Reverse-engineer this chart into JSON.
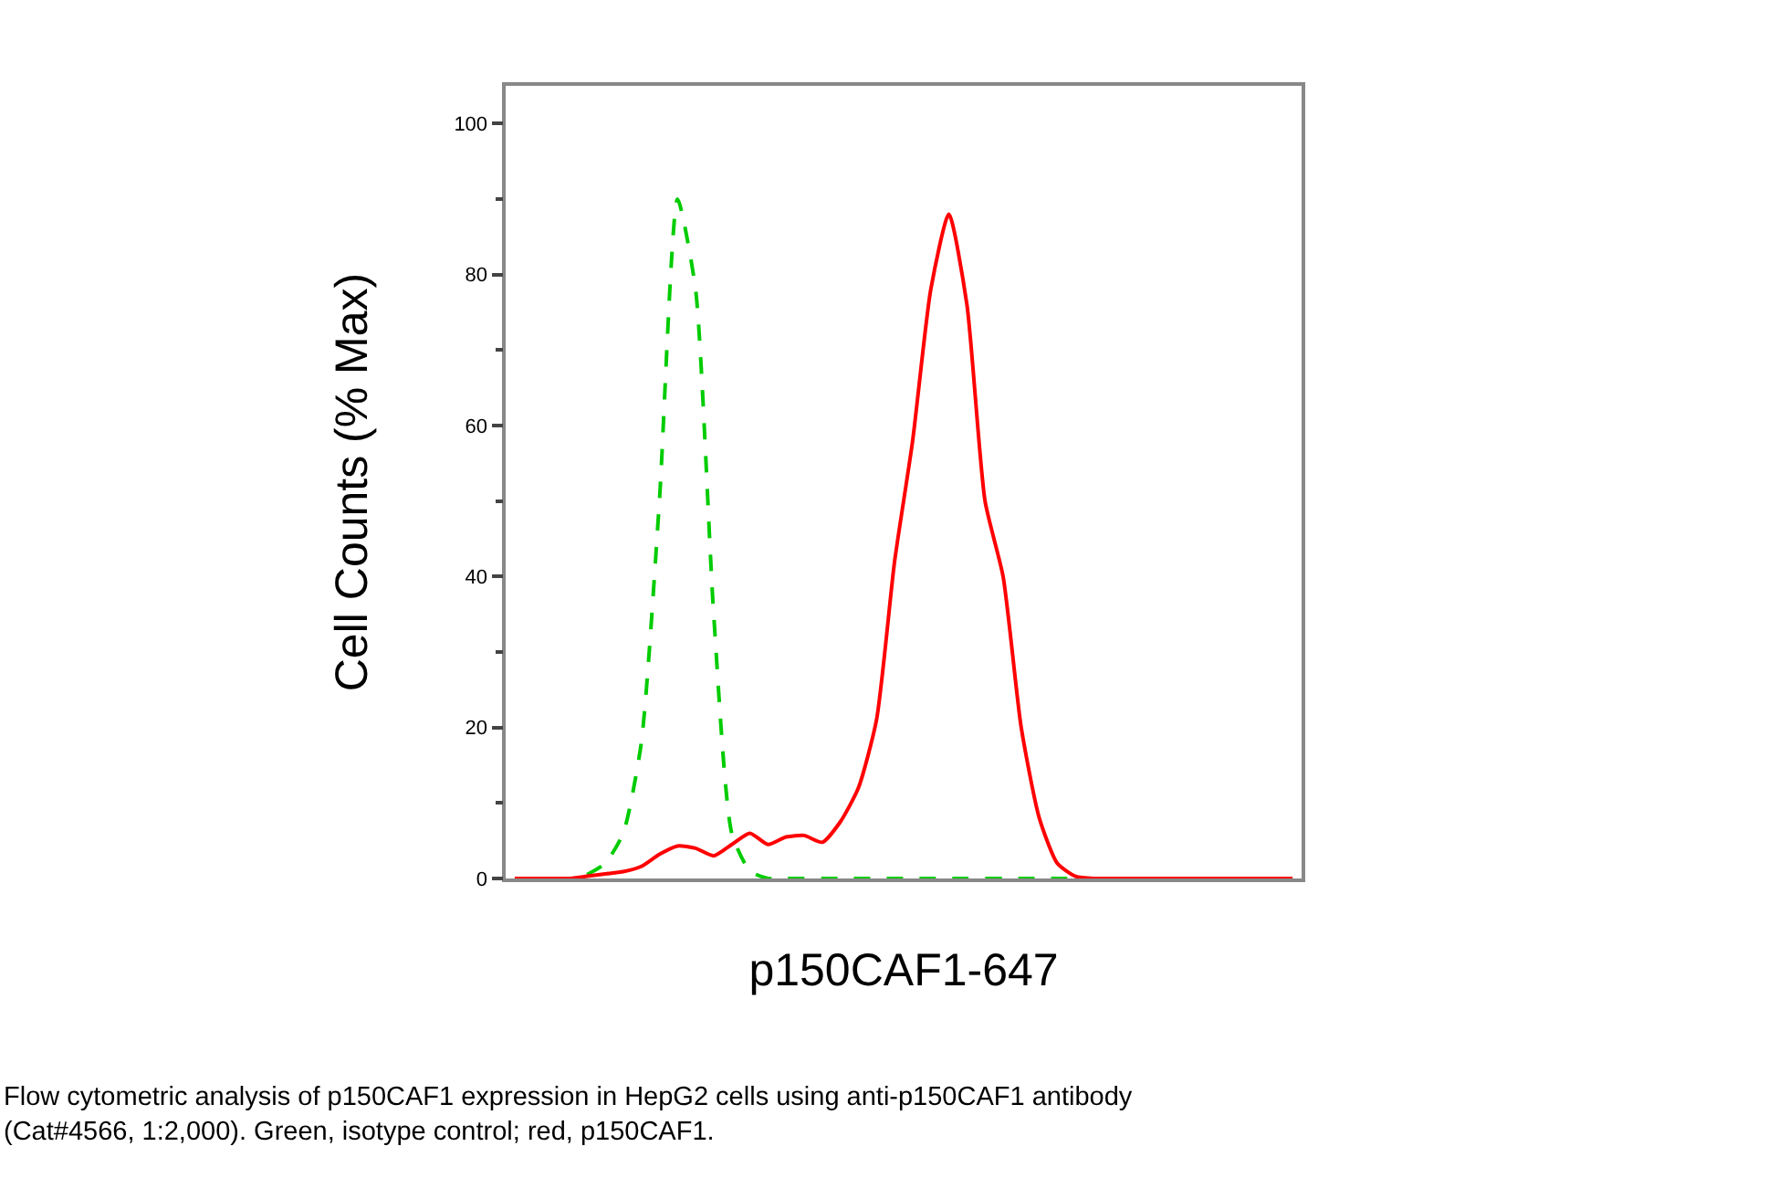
{
  "chart_data": {
    "type": "line",
    "xlabel": "p150CAF1-647",
    "ylabel": "Cell Counts (% Max)",
    "annotations": [
      "Flow cytometric analysis of p150CAF1 expression in HepG2 cells using anti-p150CAF1 antibody\n(Cat#4566, 1:2,000). Green, isotype control; red, p150CAF1."
    ],
    "categories": [
      null,
      null,
      null,
      null,
      null,
      null,
      null,
      null,
      null,
      null,
      null,
      null,
      null,
      null,
      null,
      null,
      null,
      null,
      null,
      null,
      null,
      null,
      null,
      null,
      null,
      null,
      null,
      null,
      null,
      null,
      null,
      null,
      null,
      null,
      null,
      null,
      null,
      null,
      null,
      null,
      null,
      null,
      null,
      null
    ],
    "series": [
      {
        "color": "#00cc00",
        "line_style": "dashed",
        "values": [
          null,
          null,
          null,
          null,
          0.5,
          2,
          6,
          18,
          50,
          90,
          78,
          35,
          6,
          1,
          0,
          0,
          0,
          0,
          0,
          0,
          0,
          0,
          0,
          0,
          0,
          0,
          0,
          0,
          0,
          0,
          0,
          0,
          null,
          null,
          null,
          null,
          null,
          null,
          null,
          null,
          null,
          null,
          null,
          null
        ]
      },
      {
        "color": "#ff0000",
        "line_style": "solid",
        "values": [
          0,
          0,
          0,
          0,
          0.3,
          0.6,
          0.9,
          1.6,
          3.2,
          4.3,
          4,
          3,
          4.5,
          6,
          4.5,
          5.5,
          5.7,
          4.8,
          7.5,
          12,
          21,
          42,
          58,
          78,
          88,
          76,
          50,
          40,
          20,
          8,
          2,
          0.3,
          0,
          0,
          0,
          0,
          0,
          0,
          0,
          0,
          0,
          0,
          0,
          0
        ]
      }
    ],
    "ylim": [
      0,
      105
    ],
    "yticks": [
      0,
      20,
      40,
      60,
      80,
      100
    ],
    "grid": false,
    "marker": "none",
    "tick_labels": "y"
  }
}
